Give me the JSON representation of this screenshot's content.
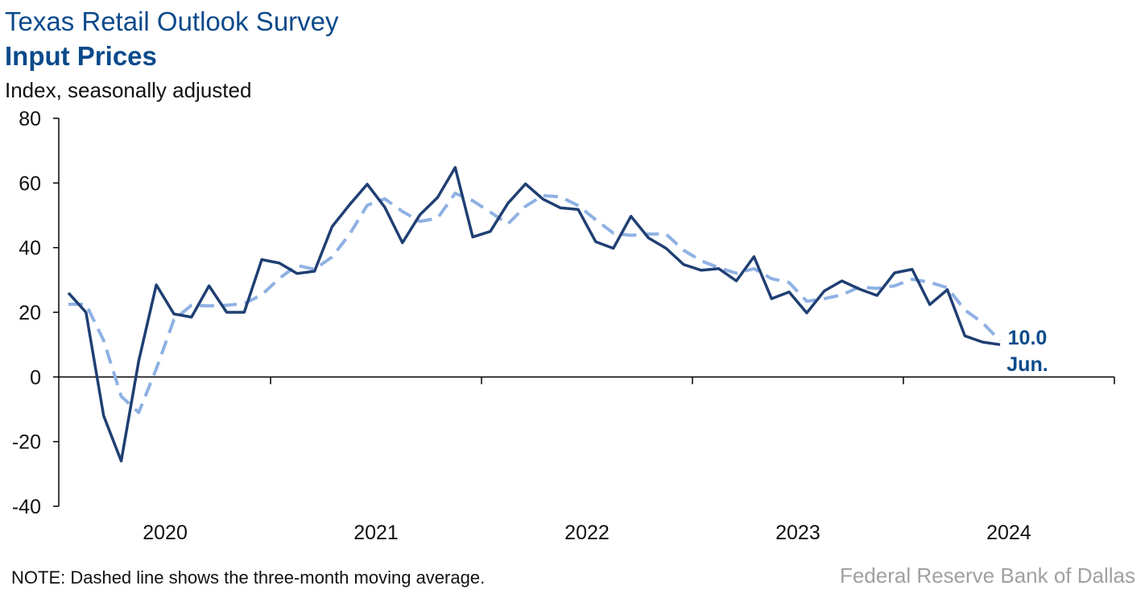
{
  "header": {
    "title": "Texas Retail Outlook Survey",
    "subtitle": "Input Prices",
    "unit": "Index, seasonally adjusted"
  },
  "footer": {
    "note": "NOTE: Dashed line shows the three-month moving average.",
    "source": "Federal Reserve Bank of Dallas"
  },
  "colors": {
    "index_line": "#1f3f73",
    "moving_average": "#8fb1e3",
    "text_accent": "#0b4a8b"
  },
  "chart_data": {
    "type": "line",
    "title": "Input Prices",
    "ylabel": "Index, seasonally adjusted",
    "ylim": [
      -40,
      80
    ],
    "yticks": [
      80,
      60,
      40,
      20,
      0,
      -20,
      -40
    ],
    "year_labels": [
      "2020",
      "2021",
      "2022",
      "2023",
      "2024"
    ],
    "x_start": "2020-01",
    "x_end": "2024-06",
    "grid": false,
    "series": [
      {
        "name": "Input Prices",
        "style": "solid",
        "values": [
          26.0,
          20.0,
          -12.0,
          -26.0,
          5.0,
          28.5,
          19.5,
          18.5,
          28.2,
          20.0,
          20.0,
          36.3,
          35.2,
          32.0,
          32.7,
          46.5,
          53.3,
          59.6,
          52.5,
          41.5,
          50.2,
          55.5,
          64.8,
          43.3,
          45.0,
          53.7,
          59.7,
          55.0,
          52.3,
          51.8,
          41.8,
          39.8,
          49.7,
          43.0,
          39.8,
          34.8,
          33.0,
          33.5,
          29.7,
          37.2,
          24.2,
          26.3,
          19.8,
          26.6,
          29.7,
          27.2,
          25.2,
          32.2,
          33.3,
          22.4,
          27.0,
          12.7,
          10.8,
          10.0
        ]
      },
      {
        "name": "Three-month moving average",
        "style": "dashed",
        "values": [
          22.5,
          22.5,
          11.3,
          -6.0,
          -11.0,
          2.5,
          17.7,
          22.2,
          22.0,
          22.2,
          22.7,
          25.4,
          30.5,
          34.5,
          33.3,
          37.1,
          44.2,
          53.1,
          55.1,
          51.2,
          48.1,
          49.1,
          56.8,
          54.5,
          51.0,
          47.3,
          52.8,
          56.1,
          55.7,
          53.0,
          48.6,
          44.5,
          43.8,
          44.2,
          44.2,
          39.2,
          35.9,
          33.8,
          32.1,
          33.5,
          30.4,
          29.2,
          23.4,
          24.2,
          25.4,
          27.8,
          27.4,
          28.2,
          30.2,
          29.3,
          27.6,
          20.7,
          16.8,
          11.2
        ]
      }
    ],
    "annotation": {
      "value": "10.0",
      "label": "Jun."
    }
  }
}
